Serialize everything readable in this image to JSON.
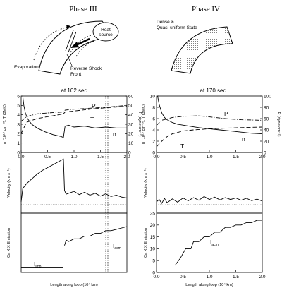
{
  "phase3": {
    "title": "Phase III",
    "labels": {
      "heat": "Heat",
      "source": "source",
      "evaporation": "Evaporation",
      "shock1": "Reverse Shock",
      "shock2": "Front"
    },
    "time": "at 102 sec"
  },
  "phase4": {
    "title": "Phase IV",
    "labels": {
      "dense": "Dense &",
      "quasi": "Quasi-uniform State"
    },
    "time": "at 170 sec"
  },
  "axes": {
    "y_nT": "n (10¹⁰ cm⁻³), T (3MK)",
    "y_P": "P (dyne cm⁻²)",
    "y_vel": "Velocity (km s⁻¹)",
    "y_ca": "Ca XIX Emission",
    "x": "Length along loop (10⁴ km)"
  },
  "curve_labels": {
    "P": "P",
    "T": "T",
    "n": "n",
    "Iimp": "I",
    "Iimp_sub": "imp",
    "Iacm": "I",
    "Iacm_sub": "acm"
  },
  "chart_data": [
    {
      "type": "line",
      "panel": "phase3-top",
      "x_range": [
        0,
        2
      ],
      "ylim_left": [
        0,
        6
      ],
      "ylim_right": [
        0,
        60
      ],
      "left_ticks": [
        "0",
        "1",
        "2",
        "3",
        "4",
        "5",
        "6"
      ],
      "right_ticks": [
        "0",
        "10",
        "20",
        "30",
        "40",
        "50",
        "60"
      ],
      "x_ticks": [
        "0.0",
        "0.5",
        "1.0",
        "1.5",
        "2.0"
      ],
      "series": [
        {
          "name": "n",
          "x": [
            0.03,
            0.05,
            0.08,
            0.12,
            0.2,
            0.3,
            0.45,
            0.6,
            0.75,
            0.8,
            0.83,
            0.9,
            1.0,
            1.2,
            1.4,
            1.6,
            1.8,
            2.0
          ],
          "y": [
            6.2,
            5.0,
            4.2,
            3.6,
            3.0,
            2.6,
            2.2,
            1.9,
            1.7,
            1.6,
            2.8,
            2.9,
            2.7,
            2.8,
            2.6,
            2.7,
            2.6,
            2.6
          ]
        },
        {
          "name": "T",
          "x": [
            0,
            0.1,
            0.3,
            0.5,
            0.7,
            0.8,
            0.83,
            1.0,
            1.3,
            1.6,
            2.0
          ],
          "y": [
            2.0,
            3.2,
            3.6,
            3.8,
            4.0,
            4.1,
            4.3,
            4.4,
            4.6,
            4.75,
            4.9
          ]
        },
        {
          "name": "P",
          "x": [
            0,
            0.1,
            0.3,
            0.5,
            0.8,
            0.83,
            1.0,
            1.3,
            1.6,
            2.0
          ],
          "y": [
            33,
            38,
            41,
            42,
            43,
            45,
            46,
            47,
            48,
            50
          ]
        }
      ]
    },
    {
      "type": "line",
      "panel": "phase3-mid",
      "x_range": [
        0,
        2
      ],
      "series": [
        {
          "name": "velocity",
          "x": [
            0,
            0.03,
            0.1,
            0.2,
            0.3,
            0.4,
            0.5,
            0.6,
            0.7,
            0.8,
            0.82,
            0.85,
            0.9,
            1.0,
            1.1,
            1.2,
            1.3,
            1.4,
            1.5,
            1.6,
            1.7,
            1.8,
            1.9,
            2.0
          ],
          "y": [
            0,
            70,
            95,
            120,
            145,
            165,
            180,
            195,
            210,
            225,
            60,
            40,
            45,
            55,
            38,
            50,
            35,
            45,
            30,
            42,
            28,
            35,
            25,
            20
          ]
        }
      ]
    },
    {
      "type": "line",
      "panel": "phase3-bot",
      "x_range": [
        0,
        2
      ],
      "series": [
        {
          "name": "Iimp",
          "x": [
            0,
            0.8
          ],
          "y": [
            2,
            2
          ]
        },
        {
          "name": "Iacm",
          "x": [
            0.82,
            0.85,
            0.9,
            1.0,
            1.1,
            1.2,
            1.3,
            1.4,
            1.5,
            1.6,
            1.7,
            1.8,
            1.9,
            2.0
          ],
          "y": [
            10,
            12,
            11.5,
            12.5,
            12.5,
            13.5,
            13.5,
            14.5,
            14.5,
            15.5,
            15.5,
            16,
            16.5,
            17
          ]
        }
      ]
    },
    {
      "type": "line",
      "panel": "phase4-top",
      "x_range": [
        0,
        2
      ],
      "ylim_left": [
        0,
        10
      ],
      "ylim_right": [
        0,
        100
      ],
      "left_ticks": [
        "0",
        "2",
        "4",
        "6",
        "8",
        "10"
      ],
      "right_ticks": [
        "0",
        "20",
        "40",
        "60",
        "80",
        "100"
      ],
      "x_ticks": [
        "0.0",
        "0.5",
        "1.0",
        "1.5",
        "2.0"
      ],
      "series": [
        {
          "name": "n",
          "x": [
            0.02,
            0.05,
            0.1,
            0.15,
            0.2,
            0.3,
            0.4,
            0.6,
            0.8,
            1.0,
            1.2,
            1.4,
            1.6,
            1.8,
            2.0
          ],
          "y": [
            10.5,
            8.5,
            7.0,
            6.2,
            5.8,
            5.3,
            5.0,
            4.7,
            4.4,
            4.2,
            4.0,
            3.8,
            3.6,
            3.4,
            3.3
          ]
        },
        {
          "name": "T",
          "x": [
            0,
            0.1,
            0.2,
            0.3,
            0.5,
            0.7,
            1.0,
            1.3,
            1.6,
            2.0
          ],
          "y": [
            1.0,
            2.0,
            2.8,
            3.3,
            3.8,
            4.0,
            4.2,
            4.3,
            4.4,
            4.5
          ]
        },
        {
          "name": "P",
          "x": [
            0,
            0.1,
            0.3,
            0.5,
            0.8,
            1.0,
            1.3,
            1.6,
            2.0
          ],
          "y": [
            48,
            57,
            62,
            64,
            65,
            63,
            60,
            58,
            57
          ]
        }
      ]
    },
    {
      "type": "line",
      "panel": "phase4-mid",
      "x_range": [
        0,
        2
      ],
      "series": [
        {
          "name": "velocity",
          "x": [
            0,
            0.05,
            0.1,
            0.15,
            0.2,
            0.3,
            0.4,
            0.5,
            0.6,
            0.7,
            0.8,
            0.9,
            1.0,
            1.1,
            1.2,
            1.3,
            1.4,
            1.5,
            1.6,
            1.7,
            1.8,
            1.9,
            2.0
          ],
          "y": [
            0,
            12,
            -8,
            18,
            -5,
            15,
            -2,
            20,
            5,
            22,
            8,
            28,
            12,
            25,
            10,
            22,
            12,
            20,
            8,
            18,
            6,
            14,
            4
          ]
        }
      ]
    },
    {
      "type": "line",
      "panel": "phase4-bot",
      "x_range": [
        0,
        2
      ],
      "ylim": [
        0,
        25
      ],
      "y_ticks": [
        "0",
        "5",
        "10",
        "15",
        "20",
        "25"
      ],
      "x_ticks": [
        "0.0",
        "0.5",
        "1.0",
        "1.5",
        "2.0"
      ],
      "series": [
        {
          "name": "Iacm",
          "x": [
            0.35,
            0.45,
            0.55,
            0.65,
            0.7,
            0.8,
            0.9,
            1.0,
            1.1,
            1.2,
            1.3,
            1.4,
            1.5,
            1.6,
            1.7,
            1.8,
            1.9,
            2.0
          ],
          "y": [
            3,
            6,
            10,
            10,
            13,
            13,
            15,
            15,
            17,
            17,
            19,
            19,
            20,
            20,
            21,
            21,
            22,
            22
          ]
        }
      ]
    }
  ]
}
